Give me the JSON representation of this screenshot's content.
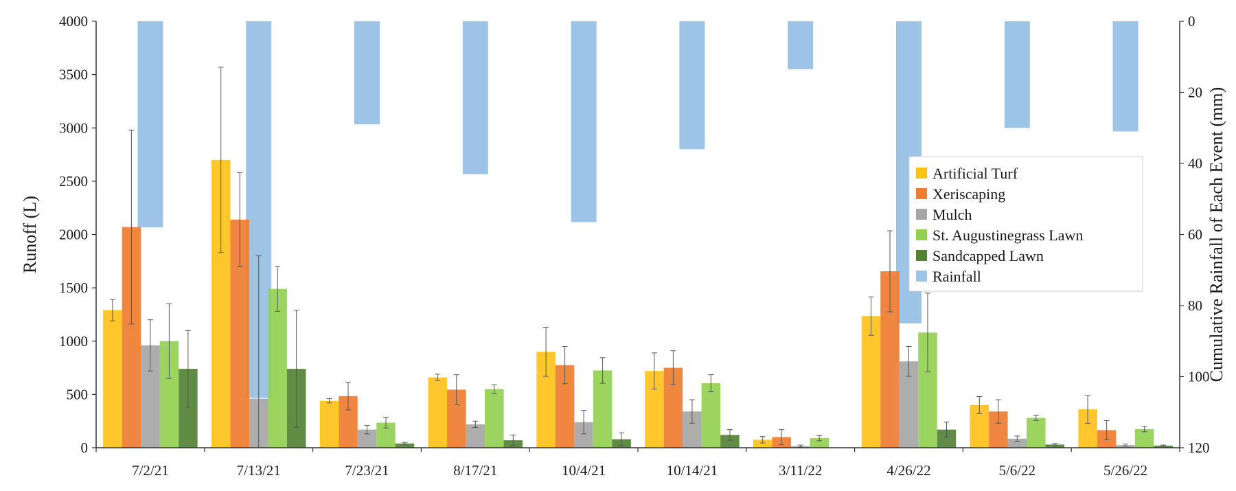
{
  "chart_data": {
    "type": "bar",
    "ylabel": "Runoff  (L)",
    "y2label": "Cumulative Rainfall of  Each Event (mm)",
    "ylim": [
      0,
      4000
    ],
    "y2lim": [
      0,
      120
    ],
    "y2_inverted": true,
    "yticks": [
      "0",
      "500",
      "1000",
      "1500",
      "2000",
      "2500",
      "3000",
      "3500",
      "4000"
    ],
    "y2ticks": [
      "0",
      "20",
      "40",
      "60",
      "80",
      "100",
      "120"
    ],
    "grid": false,
    "legend_position": "right",
    "categories": [
      "7/2/21",
      "7/13/21",
      "7/23/21",
      "8/17/21",
      "10/4/21",
      "10/14/21",
      "3/11/22",
      "4/26/22",
      "5/6/22",
      "5/26/22"
    ],
    "series": [
      {
        "name": "Artificial Turf",
        "color": "#FFC21A",
        "values": [
          1290,
          2700,
          440,
          660,
          900,
          720,
          75,
          1235,
          400,
          360
        ],
        "errors": [
          100,
          870,
          20,
          30,
          230,
          170,
          30,
          180,
          80,
          130
        ]
      },
      {
        "name": "Xeriscaping",
        "color": "#EE7D31",
        "values": [
          2070,
          2140,
          485,
          545,
          775,
          750,
          100,
          1655,
          340,
          165
        ],
        "errors": [
          910,
          440,
          130,
          140,
          175,
          160,
          70,
          380,
          110,
          90
        ]
      },
      {
        "name": "Mulch",
        "color": "#A6A6A6",
        "values": [
          960,
          460,
          170,
          220,
          240,
          340,
          15,
          810,
          85,
          25
        ],
        "errors": [
          240,
          1340,
          40,
          30,
          110,
          110,
          10,
          140,
          25,
          10
        ]
      },
      {
        "name": "St. Augustinegrass Lawn",
        "color": "#92D050",
        "values": [
          1000,
          1490,
          235,
          550,
          725,
          605,
          90,
          1080,
          280,
          175
        ],
        "errors": [
          350,
          210,
          50,
          40,
          120,
          80,
          25,
          370,
          25,
          25
        ]
      },
      {
        "name": "Sandcapped Lawn",
        "color": "#548235",
        "values": [
          740,
          740,
          40,
          70,
          80,
          120,
          0,
          170,
          30,
          20
        ],
        "errors": [
          360,
          550,
          10,
          50,
          60,
          50,
          0,
          70,
          10,
          5
        ]
      }
    ],
    "rainfall": {
      "name": "Rainfall",
      "color": "#9DC3E6",
      "axis": "secondary",
      "values": [
        58,
        106,
        29,
        43,
        56.5,
        36,
        13.5,
        85,
        30,
        31
      ]
    }
  }
}
